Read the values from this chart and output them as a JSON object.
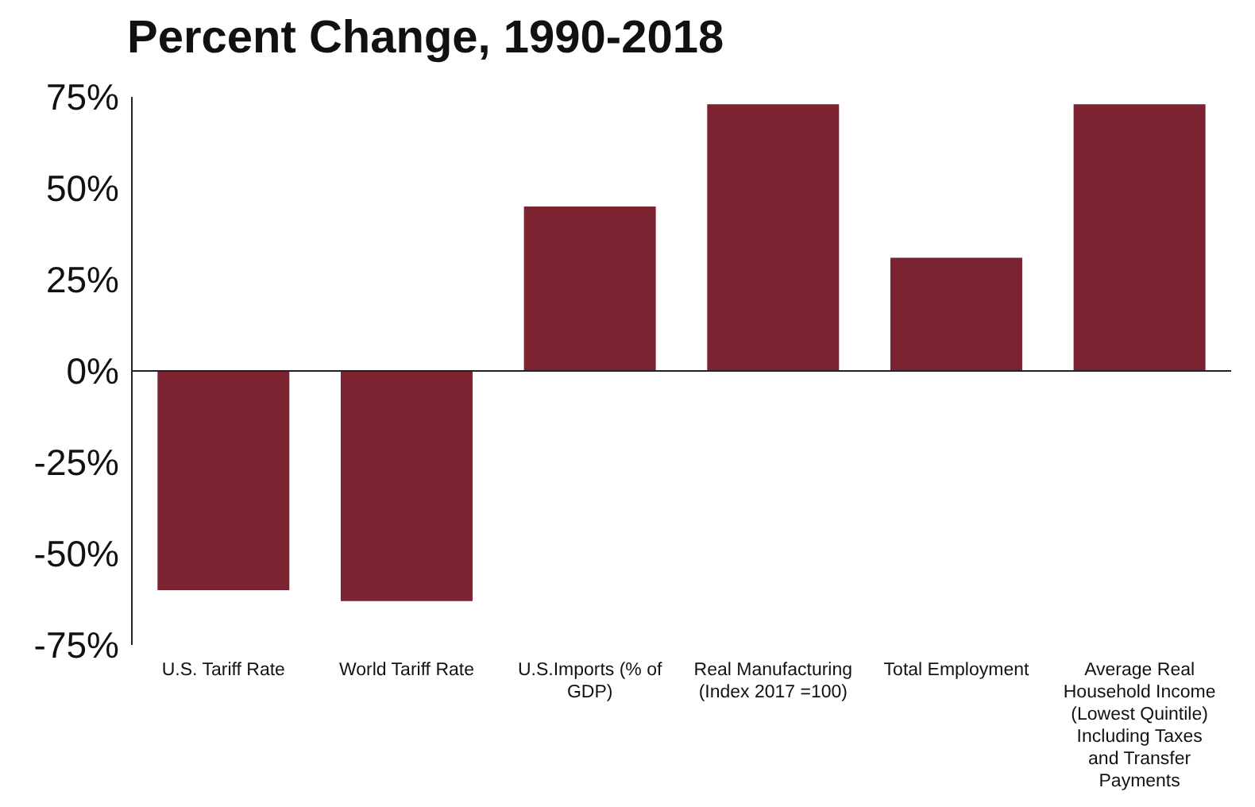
{
  "chart_data": {
    "type": "bar",
    "title": "Percent Change, 1990-2018",
    "categories": [
      "U.S. Tariff Rate",
      "World Tariff Rate",
      "U.S.Imports (% of GDP)",
      "Real Manufacturing (Index 2017 =100)",
      "Total Employment",
      "Average Real Household Income (Lowest Quintile) Including Taxes and Transfer Payments"
    ],
    "values": [
      -60,
      -63,
      45,
      73,
      31,
      73
    ],
    "color": "#7b2331",
    "ylim": [
      -75,
      75
    ],
    "yticks": [
      {
        "value": -75,
        "label": "-75%"
      },
      {
        "value": -50,
        "label": "-50%"
      },
      {
        "value": -25,
        "label": "-25%"
      },
      {
        "value": 0,
        "label": "0%"
      },
      {
        "value": 25,
        "label": "25%"
      },
      {
        "value": 50,
        "label": "50%"
      },
      {
        "value": 75,
        "label": "75%"
      }
    ],
    "ref_lines": [
      {
        "axis": "y",
        "value": 0,
        "color": "#222222"
      }
    ],
    "grid": false,
    "legend": false
  }
}
